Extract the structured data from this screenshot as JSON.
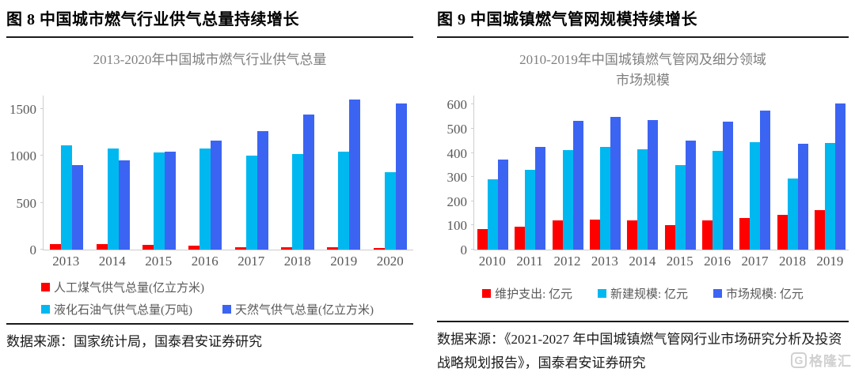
{
  "chart_data": [
    {
      "type": "bar",
      "figure_label": "图 8 中国城市燃气行业供气总量持续增长",
      "title": "2013-2020年中国城市燃气行业供气总量",
      "categories": [
        "2013",
        "2014",
        "2015",
        "2016",
        "2017",
        "2018",
        "2019",
        "2020"
      ],
      "series": [
        {
          "name": "人工煤气供气总量(亿立方米)",
          "color": "#ff0000",
          "values": [
            60,
            55,
            48,
            42,
            25,
            25,
            22,
            20
          ]
        },
        {
          "name": "液化石油气供气总量(万吨)",
          "color": "#00b8f0",
          "values": [
            1110,
            1080,
            1035,
            1075,
            1000,
            1015,
            1040,
            825
          ]
        },
        {
          "name": "天然气供气总量(亿立方米)",
          "color": "#3c64f2",
          "values": [
            900,
            955,
            1040,
            1165,
            1260,
            1440,
            1600,
            1560
          ]
        }
      ],
      "y_ticks": [
        0,
        500,
        1000,
        1500
      ],
      "y_max": 1650,
      "grid": false,
      "legend_position": "bottom",
      "source": "数据来源：国家统计局，国泰君安证券研究"
    },
    {
      "type": "bar",
      "figure_label": "图 9 中国城镇燃气管网规模持续增长",
      "title": "2010-2019年中国城镇燃气管网及细分领域\n市场规模",
      "categories": [
        "2010",
        "2011",
        "2012",
        "2013",
        "2014",
        "2015",
        "2016",
        "2017",
        "2018",
        "2019"
      ],
      "series": [
        {
          "name": "维护支出: 亿元",
          "color": "#ff0000",
          "values": [
            85,
            95,
            120,
            123,
            120,
            102,
            120,
            132,
            145,
            163
          ]
        },
        {
          "name": "新建规模: 亿元",
          "color": "#00b8f0",
          "values": [
            290,
            330,
            413,
            424,
            415,
            350,
            408,
            445,
            294,
            440
          ]
        },
        {
          "name": "市场规模: 亿元",
          "color": "#3c64f2",
          "values": [
            372,
            425,
            533,
            548,
            535,
            452,
            528,
            576,
            438,
            605
          ]
        }
      ],
      "y_ticks": [
        0,
        100,
        200,
        300,
        400,
        500,
        600
      ],
      "y_max": 640,
      "grid": false,
      "legend_position": "bottom",
      "source": "数据来源：《2021-2027 年中国城镇燃气管网行业市场研究分析及投资战略规划报告》，国泰君安证券研究"
    }
  ],
  "colors": {
    "series_red": "#ff0000",
    "series_cyan": "#00b8f0",
    "series_blue": "#3c64f2",
    "axis_text": "#595959",
    "chart_title_text": "#7f7f7f",
    "axis_line": "#cfcdcd",
    "heading_text": "#000000"
  },
  "watermark": {
    "icon_letter": "G",
    "text": "格隆汇"
  }
}
